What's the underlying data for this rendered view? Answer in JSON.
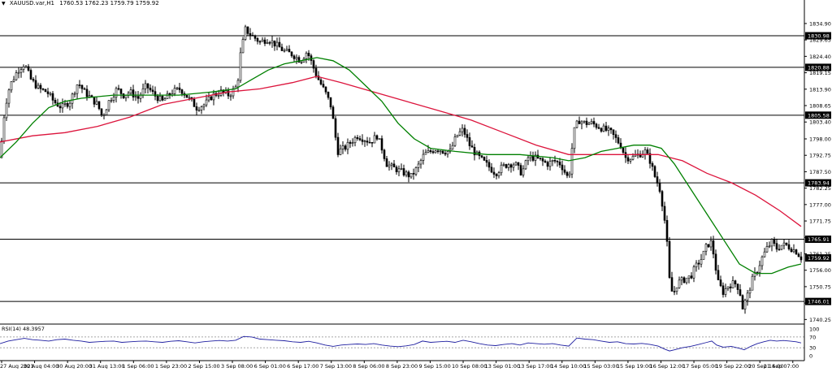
{
  "header": {
    "symbol": "XAUUSD.var,H1",
    "ohlc": "1760.53 1762.23 1759.79 1759.92",
    "dropdown_icon": "triangle-down-icon"
  },
  "rsi": {
    "label": "RSI(14) 48.3957",
    "levels": [
      100,
      70,
      30,
      0
    ]
  },
  "colors": {
    "candle": "#000000",
    "ma_fast": "#008000",
    "ma_slow": "#dc143c",
    "rsi_line": "#1e1ea0",
    "level_line": "#000000"
  },
  "chart_data": {
    "type": "candlestick",
    "price_axis": {
      "ticks": [
        "1834.90",
        "1829.65",
        "1824.40",
        "1819.15",
        "1813.90",
        "1808.65",
        "1803.40",
        "1798.00",
        "1792.75",
        "1787.50",
        "1782.25",
        "1777.00",
        "1771.75",
        "1766.50",
        "1761.25",
        "1756.00",
        "1750.75",
        "1745.50",
        "1740.25"
      ],
      "ylim": [
        1738.0,
        1838.0
      ]
    },
    "time_axis": {
      "labels": [
        "27 Aug 2021",
        "30 Aug 04:00",
        "30 Aug 20:00",
        "31 Aug 13:00",
        "1 Sep 06:00",
        "1 Sep 23:00",
        "2 Sep 15:00",
        "3 Sep 08:00",
        "6 Sep 01:00",
        "6 Sep 17:00",
        "7 Sep 13:00",
        "8 Sep 06:00",
        "8 Sep 23:00",
        "9 Sep 15:00",
        "10 Sep 08:00",
        "13 Sep 01:00",
        "13 Sep 17:00",
        "14 Sep 10:00",
        "15 Sep 03:00",
        "15 Sep 19:00",
        "16 Sep 12:00",
        "17 Sep 05:00",
        "19 Sep 22:00",
        "20 Sep 14:00",
        "21 Sep 07:00"
      ]
    },
    "horizontal_levels": [
      {
        "value": 1830.98,
        "label": "1830.98"
      },
      {
        "value": 1820.88,
        "label": "1820.88"
      },
      {
        "value": 1805.58,
        "label": "1805.58"
      },
      {
        "value": 1783.94,
        "label": "1783.94"
      },
      {
        "value": 1765.91,
        "label": "1765.91"
      },
      {
        "value": 1746.01,
        "label": "1746.01"
      }
    ],
    "current_price": {
      "value": 1759.92,
      "label": "1759.92"
    },
    "price_path": [
      [
        0,
        1792
      ],
      [
        6,
        1808
      ],
      [
        12,
        1815
      ],
      [
        22,
        1820
      ],
      [
        30,
        1822
      ],
      [
        38,
        1817
      ],
      [
        48,
        1814
      ],
      [
        58,
        1813
      ],
      [
        66,
        1810
      ],
      [
        76,
        1808
      ],
      [
        86,
        1810
      ],
      [
        96,
        1816
      ],
      [
        104,
        1813
      ],
      [
        112,
        1811
      ],
      [
        120,
        1809
      ],
      [
        126,
        1805
      ],
      [
        134,
        1810
      ],
      [
        144,
        1814
      ],
      [
        152,
        1812
      ],
      [
        160,
        1813
      ],
      [
        170,
        1811
      ],
      [
        180,
        1815
      ],
      [
        190,
        1812
      ],
      [
        200,
        1810
      ],
      [
        212,
        1813
      ],
      [
        222,
        1814
      ],
      [
        232,
        1811
      ],
      [
        242,
        1808
      ],
      [
        252,
        1809
      ],
      [
        262,
        1812
      ],
      [
        272,
        1813
      ],
      [
        282,
        1812
      ],
      [
        292,
        1815
      ],
      [
        296,
        1825
      ],
      [
        302,
        1833
      ],
      [
        310,
        1831
      ],
      [
        320,
        1829
      ],
      [
        330,
        1830
      ],
      [
        340,
        1828
      ],
      [
        350,
        1826
      ],
      [
        360,
        1825
      ],
      [
        370,
        1823
      ],
      [
        378,
        1826
      ],
      [
        384,
        1822
      ],
      [
        390,
        1818
      ],
      [
        396,
        1815
      ],
      [
        402,
        1812
      ],
      [
        408,
        1808
      ],
      [
        412,
        1800
      ],
      [
        416,
        1794
      ],
      [
        424,
        1795
      ],
      [
        432,
        1797
      ],
      [
        440,
        1799
      ],
      [
        448,
        1798
      ],
      [
        456,
        1797
      ],
      [
        464,
        1799
      ],
      [
        470,
        1795
      ],
      [
        476,
        1790
      ],
      [
        482,
        1789
      ],
      [
        490,
        1788
      ],
      [
        498,
        1787
      ],
      [
        506,
        1786
      ],
      [
        514,
        1789
      ],
      [
        522,
        1793
      ],
      [
        530,
        1794
      ],
      [
        538,
        1795
      ],
      [
        546,
        1794
      ],
      [
        554,
        1794
      ],
      [
        562,
        1799
      ],
      [
        570,
        1801
      ],
      [
        578,
        1796
      ],
      [
        586,
        1793
      ],
      [
        594,
        1791
      ],
      [
        602,
        1789
      ],
      [
        610,
        1787
      ],
      [
        618,
        1789
      ],
      [
        626,
        1790
      ],
      [
        634,
        1790
      ],
      [
        642,
        1787
      ],
      [
        650,
        1792
      ],
      [
        658,
        1792
      ],
      [
        666,
        1791
      ],
      [
        674,
        1790
      ],
      [
        682,
        1791
      ],
      [
        690,
        1790
      ],
      [
        696,
        1787
      ],
      [
        700,
        1785
      ],
      [
        706,
        1800
      ],
      [
        712,
        1804
      ],
      [
        720,
        1803
      ],
      [
        728,
        1803
      ],
      [
        736,
        1802
      ],
      [
        744,
        1801
      ],
      [
        752,
        1800
      ],
      [
        758,
        1798
      ],
      [
        764,
        1796
      ],
      [
        770,
        1792
      ],
      [
        778,
        1792
      ],
      [
        786,
        1793
      ],
      [
        794,
        1794
      ],
      [
        800,
        1791
      ],
      [
        806,
        1786
      ],
      [
        812,
        1782
      ],
      [
        816,
        1776
      ],
      [
        820,
        1768
      ],
      [
        824,
        1753
      ],
      [
        828,
        1748
      ],
      [
        834,
        1752
      ],
      [
        842,
        1753
      ],
      [
        850,
        1754
      ],
      [
        856,
        1757
      ],
      [
        864,
        1760
      ],
      [
        870,
        1764
      ],
      [
        876,
        1765
      ],
      [
        880,
        1758
      ],
      [
        884,
        1752
      ],
      [
        890,
        1749
      ],
      [
        896,
        1751
      ],
      [
        904,
        1752
      ],
      [
        910,
        1750
      ],
      [
        914,
        1744
      ],
      [
        920,
        1748
      ],
      [
        926,
        1753
      ],
      [
        932,
        1756
      ],
      [
        938,
        1760
      ],
      [
        944,
        1763
      ],
      [
        950,
        1765
      ],
      [
        956,
        1763
      ],
      [
        962,
        1764
      ],
      [
        968,
        1764
      ],
      [
        974,
        1763
      ],
      [
        980,
        1762
      ],
      [
        986,
        1760
      ]
    ],
    "ma_fast_path": [
      [
        0,
        1792
      ],
      [
        20,
        1797
      ],
      [
        40,
        1803
      ],
      [
        60,
        1808
      ],
      [
        80,
        1810
      ],
      [
        100,
        1811
      ],
      [
        140,
        1812
      ],
      [
        180,
        1812
      ],
      [
        220,
        1812
      ],
      [
        260,
        1813
      ],
      [
        290,
        1814
      ],
      [
        310,
        1817
      ],
      [
        330,
        1820
      ],
      [
        350,
        1822
      ],
      [
        370,
        1823
      ],
      [
        390,
        1824
      ],
      [
        410,
        1823
      ],
      [
        430,
        1820
      ],
      [
        450,
        1815
      ],
      [
        470,
        1810
      ],
      [
        490,
        1803
      ],
      [
        510,
        1798
      ],
      [
        530,
        1795
      ],
      [
        560,
        1794
      ],
      [
        600,
        1793
      ],
      [
        640,
        1793
      ],
      [
        680,
        1792
      ],
      [
        700,
        1791
      ],
      [
        720,
        1792
      ],
      [
        740,
        1794
      ],
      [
        760,
        1795
      ],
      [
        780,
        1796
      ],
      [
        800,
        1796
      ],
      [
        814,
        1795
      ],
      [
        830,
        1790
      ],
      [
        850,
        1782
      ],
      [
        870,
        1774
      ],
      [
        890,
        1766
      ],
      [
        910,
        1758
      ],
      [
        930,
        1755
      ],
      [
        950,
        1755
      ],
      [
        970,
        1757
      ],
      [
        986,
        1758
      ]
    ],
    "ma_slow_path": [
      [
        0,
        1797
      ],
      [
        40,
        1799
      ],
      [
        80,
        1800
      ],
      [
        120,
        1802
      ],
      [
        160,
        1805
      ],
      [
        200,
        1809
      ],
      [
        240,
        1811
      ],
      [
        280,
        1813
      ],
      [
        320,
        1814
      ],
      [
        360,
        1816
      ],
      [
        390,
        1818
      ],
      [
        420,
        1816
      ],
      [
        460,
        1813
      ],
      [
        500,
        1810
      ],
      [
        540,
        1807
      ],
      [
        580,
        1804
      ],
      [
        620,
        1800
      ],
      [
        660,
        1796
      ],
      [
        700,
        1793
      ],
      [
        740,
        1793
      ],
      [
        780,
        1793
      ],
      [
        810,
        1793
      ],
      [
        840,
        1791
      ],
      [
        870,
        1787
      ],
      [
        900,
        1784
      ],
      [
        930,
        1780
      ],
      [
        960,
        1775
      ],
      [
        986,
        1770
      ]
    ],
    "rsi_path": [
      [
        0,
        45
      ],
      [
        10,
        55
      ],
      [
        20,
        60
      ],
      [
        30,
        65
      ],
      [
        40,
        60
      ],
      [
        50,
        58
      ],
      [
        60,
        55
      ],
      [
        70,
        60
      ],
      [
        80,
        62
      ],
      [
        90,
        58
      ],
      [
        100,
        55
      ],
      [
        110,
        50
      ],
      [
        120,
        52
      ],
      [
        130,
        54
      ],
      [
        140,
        55
      ],
      [
        150,
        50
      ],
      [
        160,
        52
      ],
      [
        170,
        54
      ],
      [
        180,
        55
      ],
      [
        190,
        52
      ],
      [
        200,
        50
      ],
      [
        210,
        54
      ],
      [
        220,
        56
      ],
      [
        230,
        52
      ],
      [
        240,
        48
      ],
      [
        250,
        52
      ],
      [
        260,
        55
      ],
      [
        270,
        57
      ],
      [
        280,
        55
      ],
      [
        290,
        58
      ],
      [
        300,
        72
      ],
      [
        310,
        70
      ],
      [
        320,
        62
      ],
      [
        330,
        60
      ],
      [
        340,
        58
      ],
      [
        350,
        56
      ],
      [
        360,
        52
      ],
      [
        370,
        50
      ],
      [
        380,
        54
      ],
      [
        390,
        48
      ],
      [
        400,
        40
      ],
      [
        410,
        35
      ],
      [
        420,
        40
      ],
      [
        430,
        42
      ],
      [
        440,
        44
      ],
      [
        450,
        42
      ],
      [
        460,
        45
      ],
      [
        470,
        40
      ],
      [
        480,
        36
      ],
      [
        490,
        34
      ],
      [
        500,
        37
      ],
      [
        510,
        42
      ],
      [
        520,
        55
      ],
      [
        530,
        50
      ],
      [
        540,
        52
      ],
      [
        550,
        54
      ],
      [
        560,
        50
      ],
      [
        570,
        58
      ],
      [
        580,
        52
      ],
      [
        590,
        45
      ],
      [
        600,
        40
      ],
      [
        610,
        38
      ],
      [
        620,
        42
      ],
      [
        630,
        45
      ],
      [
        640,
        40
      ],
      [
        650,
        48
      ],
      [
        660,
        45
      ],
      [
        670,
        43
      ],
      [
        680,
        45
      ],
      [
        690,
        40
      ],
      [
        700,
        36
      ],
      [
        710,
        66
      ],
      [
        720,
        62
      ],
      [
        730,
        60
      ],
      [
        740,
        55
      ],
      [
        750,
        50
      ],
      [
        760,
        52
      ],
      [
        770,
        45
      ],
      [
        780,
        44
      ],
      [
        790,
        46
      ],
      [
        800,
        42
      ],
      [
        810,
        36
      ],
      [
        818,
        25
      ],
      [
        824,
        18
      ],
      [
        830,
        22
      ],
      [
        840,
        30
      ],
      [
        850,
        35
      ],
      [
        860,
        42
      ],
      [
        870,
        50
      ],
      [
        876,
        55
      ],
      [
        882,
        40
      ],
      [
        890,
        32
      ],
      [
        900,
        35
      ],
      [
        910,
        28
      ],
      [
        916,
        22
      ],
      [
        924,
        35
      ],
      [
        932,
        45
      ],
      [
        940,
        52
      ],
      [
        948,
        58
      ],
      [
        956,
        55
      ],
      [
        964,
        57
      ],
      [
        972,
        55
      ],
      [
        980,
        52
      ],
      [
        986,
        48
      ]
    ]
  }
}
